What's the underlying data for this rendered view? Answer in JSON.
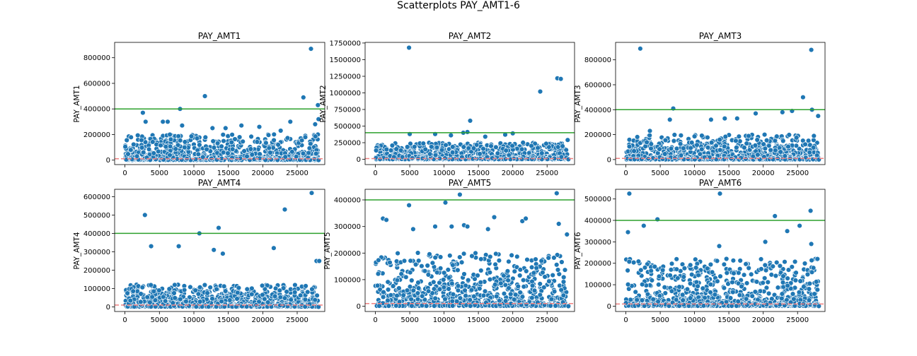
{
  "figure": {
    "title": "Scatterplots PAY_AMT1-6"
  },
  "colors": {
    "point": "#1f77b4",
    "point_edge": "#ffffff",
    "upper_line": "#2ca02c",
    "lower_line": "#f08080"
  },
  "chart_data": [
    {
      "type": "scatter",
      "title": "PAY_AMT1",
      "xlabel": "",
      "ylabel": "PAY_AMT1",
      "xlim": [
        -1500,
        29000
      ],
      "ylim": [
        -35000,
        920000
      ],
      "xticks": [
        0,
        5000,
        10000,
        15000,
        20000,
        25000
      ],
      "yticks": [
        0,
        200000,
        400000,
        600000,
        800000
      ],
      "hlines": [
        {
          "y": 400000,
          "style": "solid",
          "color": "green"
        },
        {
          "y": 10000,
          "style": "dashed",
          "color": "red"
        }
      ],
      "outliers": [
        [
          2600,
          370000
        ],
        [
          3000,
          300000
        ],
        [
          5500,
          300000
        ],
        [
          6200,
          300000
        ],
        [
          8000,
          400000
        ],
        [
          8300,
          270000
        ],
        [
          11600,
          500000
        ],
        [
          12700,
          250000
        ],
        [
          14600,
          250000
        ],
        [
          16900,
          270000
        ],
        [
          19500,
          260000
        ],
        [
          22600,
          230000
        ],
        [
          24000,
          300000
        ],
        [
          25900,
          490000
        ],
        [
          27000,
          870000
        ],
        [
          27600,
          280000
        ],
        [
          28000,
          430000
        ],
        [
          28100,
          320000
        ]
      ],
      "band_max": 200000
    },
    {
      "type": "scatter",
      "title": "PAY_AMT2",
      "xlabel": "",
      "ylabel": "PAY_AMT2",
      "xlim": [
        -1500,
        29000
      ],
      "ylim": [
        -80000,
        1760000
      ],
      "xticks": [
        0,
        5000,
        10000,
        15000,
        20000,
        25000
      ],
      "yticks": [
        0,
        250000,
        500000,
        750000,
        1000000,
        1250000,
        1500000,
        1750000
      ],
      "hlines": [
        {
          "y": 400000,
          "style": "solid",
          "color": "green"
        },
        {
          "y": 10000,
          "style": "dashed",
          "color": "red"
        }
      ],
      "outliers": [
        [
          4900,
          1680000
        ],
        [
          5000,
          380000
        ],
        [
          8700,
          380000
        ],
        [
          11000,
          360000
        ],
        [
          12800,
          400000
        ],
        [
          13400,
          410000
        ],
        [
          13800,
          580000
        ],
        [
          16000,
          340000
        ],
        [
          18900,
          370000
        ],
        [
          20000,
          390000
        ],
        [
          24000,
          1020000
        ],
        [
          26500,
          1220000
        ],
        [
          27000,
          1210000
        ],
        [
          28000,
          290000
        ]
      ],
      "band_max": 250000
    },
    {
      "type": "scatter",
      "title": "PAY_AMT3",
      "xlabel": "",
      "ylabel": "PAY_AMT3",
      "xlim": [
        -1500,
        29000
      ],
      "ylim": [
        -40000,
        940000
      ],
      "xticks": [
        0,
        5000,
        10000,
        15000,
        20000,
        25000
      ],
      "yticks": [
        0,
        200000,
        400000,
        600000,
        800000
      ],
      "hlines": [
        {
          "y": 400000,
          "style": "solid",
          "color": "green"
        },
        {
          "y": 10000,
          "style": "dashed",
          "color": "red"
        }
      ],
      "outliers": [
        [
          2100,
          890000
        ],
        [
          3500,
          230000
        ],
        [
          6400,
          320000
        ],
        [
          6900,
          410000
        ],
        [
          12400,
          320000
        ],
        [
          14400,
          330000
        ],
        [
          16200,
          330000
        ],
        [
          18900,
          370000
        ],
        [
          22800,
          380000
        ],
        [
          24200,
          390000
        ],
        [
          25800,
          500000
        ],
        [
          27000,
          880000
        ],
        [
          27100,
          400000
        ],
        [
          28000,
          350000
        ]
      ],
      "band_max": 200000
    },
    {
      "type": "scatter",
      "title": "PAY_AMT4",
      "xlabel": "",
      "ylabel": "PAY_AMT4",
      "xlim": [
        -1500,
        29000
      ],
      "ylim": [
        -25000,
        640000
      ],
      "xticks": [
        0,
        5000,
        10000,
        15000,
        20000,
        25000
      ],
      "yticks": [
        0,
        100000,
        200000,
        300000,
        400000,
        500000,
        600000
      ],
      "hlines": [
        {
          "y": 400000,
          "style": "solid",
          "color": "green"
        },
        {
          "y": 10000,
          "style": "dashed",
          "color": "red"
        }
      ],
      "outliers": [
        [
          2900,
          500000
        ],
        [
          3800,
          330000
        ],
        [
          7800,
          330000
        ],
        [
          10800,
          400000
        ],
        [
          12900,
          310000
        ],
        [
          13600,
          430000
        ],
        [
          14200,
          290000
        ],
        [
          21600,
          320000
        ],
        [
          23200,
          530000
        ],
        [
          27100,
          620000
        ],
        [
          27800,
          250000
        ],
        [
          28200,
          250000
        ]
      ],
      "band_max": 120000
    },
    {
      "type": "scatter",
      "title": "PAY_AMT5",
      "xlabel": "",
      "ylabel": "PAY_AMT5",
      "xlim": [
        -1500,
        29000
      ],
      "ylim": [
        -20000,
        440000
      ],
      "xticks": [
        0,
        5000,
        10000,
        15000,
        20000,
        25000
      ],
      "yticks": [
        0,
        100000,
        200000,
        300000,
        400000
      ],
      "hlines": [
        {
          "y": 400000,
          "style": "solid",
          "color": "green"
        },
        {
          "y": 10000,
          "style": "dashed",
          "color": "red"
        }
      ],
      "outliers": [
        [
          1100,
          330000
        ],
        [
          1600,
          325000
        ],
        [
          4900,
          380000
        ],
        [
          5500,
          290000
        ],
        [
          8700,
          300000
        ],
        [
          10200,
          390000
        ],
        [
          11100,
          300000
        ],
        [
          12300,
          420000
        ],
        [
          12900,
          305000
        ],
        [
          13400,
          300000
        ],
        [
          16400,
          290000
        ],
        [
          17300,
          335000
        ],
        [
          21400,
          320000
        ],
        [
          21900,
          330000
        ],
        [
          26400,
          425000
        ],
        [
          26700,
          310000
        ],
        [
          27900,
          270000
        ]
      ],
      "band_max": 200000
    },
    {
      "type": "scatter",
      "title": "PAY_AMT6",
      "xlabel": "",
      "ylabel": "PAY_AMT6",
      "xlim": [
        -1500,
        29000
      ],
      "ylim": [
        -25000,
        545000
      ],
      "xticks": [
        0,
        5000,
        10000,
        15000,
        20000,
        25000
      ],
      "yticks": [
        0,
        100000,
        200000,
        300000,
        400000,
        500000
      ],
      "hlines": [
        {
          "y": 400000,
          "style": "solid",
          "color": "green"
        },
        {
          "y": 10000,
          "style": "dashed",
          "color": "red"
        }
      ],
      "outliers": [
        [
          300,
          345000
        ],
        [
          500,
          525000
        ],
        [
          2600,
          375000
        ],
        [
          4600,
          405000
        ],
        [
          13700,
          525000
        ],
        [
          13600,
          280000
        ],
        [
          20300,
          300000
        ],
        [
          21700,
          420000
        ],
        [
          23500,
          350000
        ],
        [
          25300,
          375000
        ],
        [
          26900,
          445000
        ],
        [
          27000,
          290000
        ],
        [
          27900,
          220000
        ]
      ],
      "band_max": 220000
    }
  ]
}
